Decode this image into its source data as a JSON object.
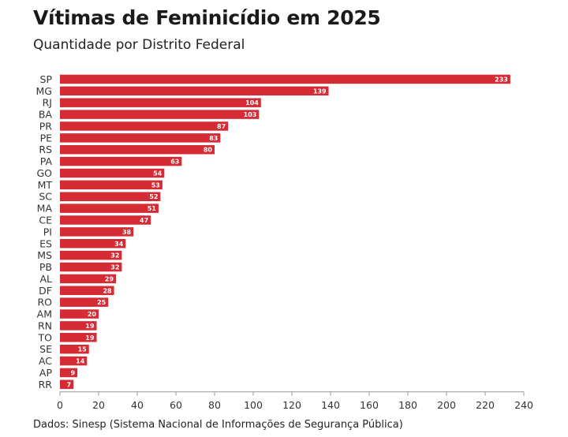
{
  "header": {
    "title": "Vítimas de Feminicídio em 2025",
    "subtitle": "Quantidade por Distrito Federal"
  },
  "footer": {
    "source": "Dados: Sinesp (Sistema Nacional de Informações de Segurança Pública)"
  },
  "colors": {
    "bar": "#d52b34",
    "bar_label": "#ffffff",
    "axis": "#999999"
  },
  "chart_data": {
    "type": "bar",
    "orientation": "horizontal",
    "title": "Vítimas de Feminicídio em 2025",
    "subtitle": "Quantidade por Distrito Federal",
    "categories": [
      "SP",
      "MG",
      "RJ",
      "BA",
      "PR",
      "PE",
      "RS",
      "PA",
      "GO",
      "MT",
      "SC",
      "MA",
      "CE",
      "PI",
      "ES",
      "MS",
      "PB",
      "AL",
      "DF",
      "RO",
      "AM",
      "RN",
      "TO",
      "SE",
      "AC",
      "AP",
      "RR"
    ],
    "values": [
      233,
      139,
      104,
      103,
      87,
      83,
      80,
      63,
      54,
      53,
      52,
      51,
      47,
      38,
      34,
      32,
      32,
      29,
      28,
      25,
      20,
      19,
      19,
      15,
      14,
      9,
      7
    ],
    "xlim": [
      0,
      240
    ],
    "xticks": [
      0,
      20,
      40,
      60,
      80,
      100,
      120,
      140,
      160,
      180,
      200,
      220,
      240
    ],
    "grid": false,
    "data_labels": true
  }
}
